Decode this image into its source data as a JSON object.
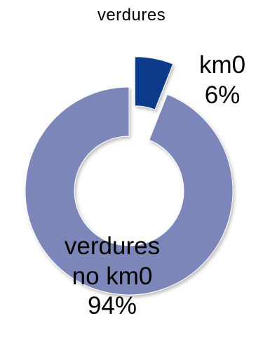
{
  "chart_data": {
    "type": "pie",
    "style": "exploded-doughnut",
    "title": "verdures",
    "slices": [
      {
        "name": "km0",
        "value": 6,
        "label_line1": "km0",
        "label_line2": "6%",
        "color": "#0e3a8c"
      },
      {
        "name": "verdures no km0",
        "value": 94,
        "label_line1": "verdures",
        "label_line2": "no km0",
        "label_line3": "94%",
        "color": "#7b86b9"
      }
    ],
    "legend": "none"
  }
}
